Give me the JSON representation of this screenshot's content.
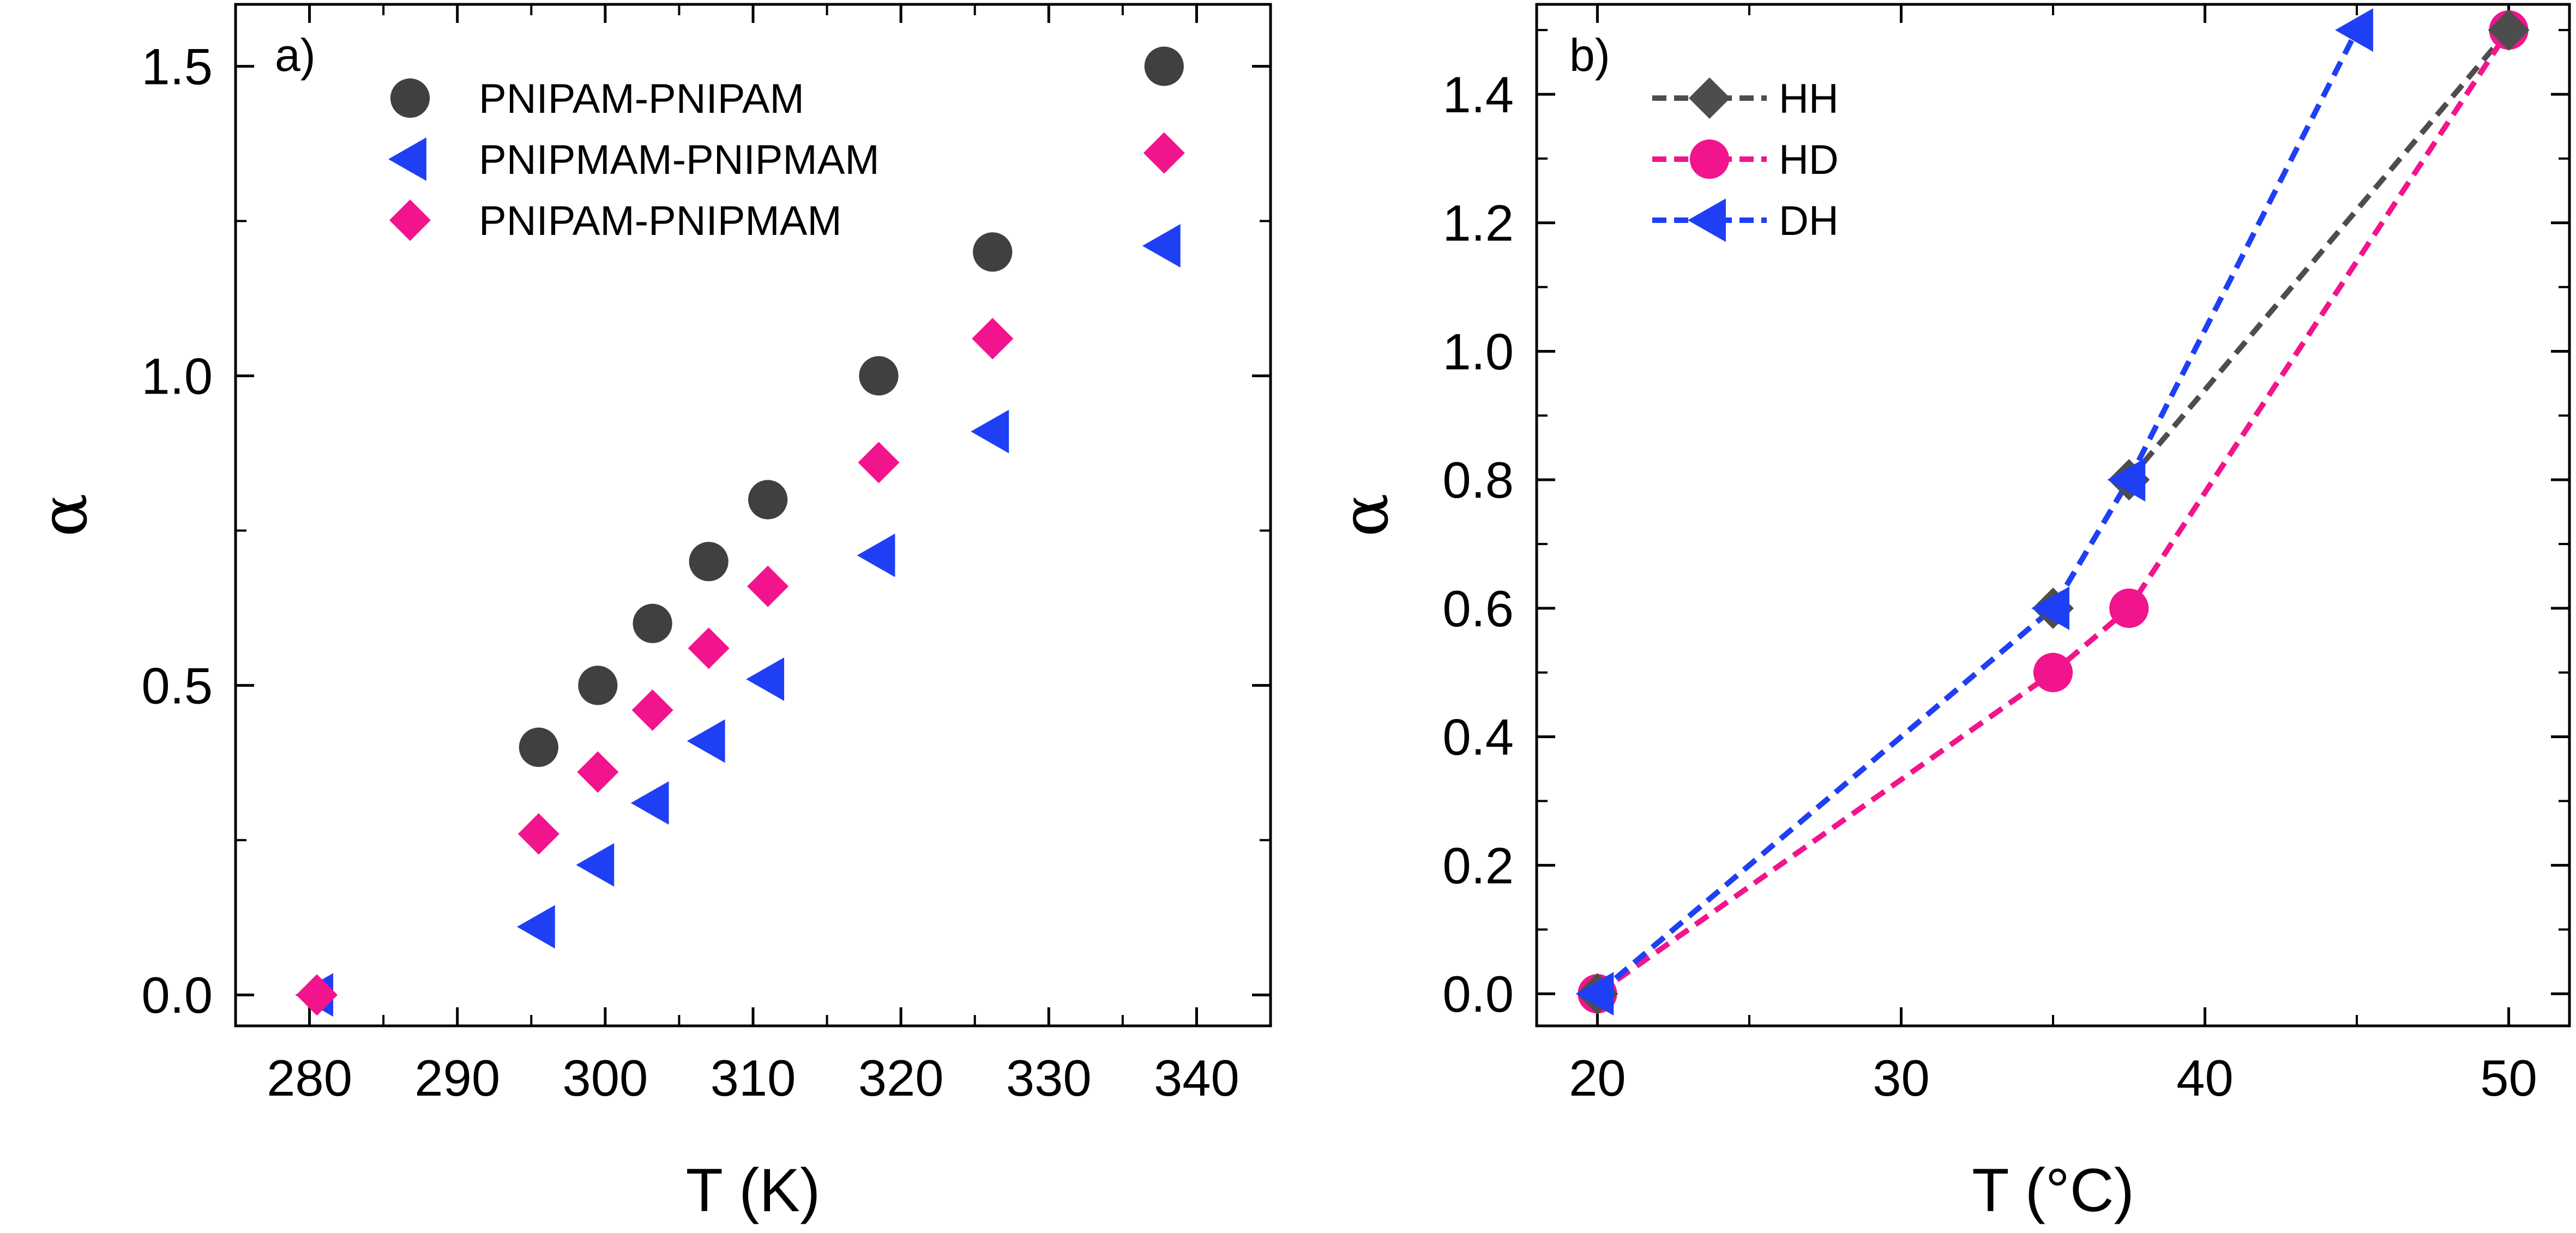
{
  "chart_data": [
    {
      "type": "scatter",
      "panel_label": "a)",
      "xlabel": "T (K)",
      "ylabel": "α",
      "xlim": [
        275,
        345
      ],
      "ylim": [
        -0.05,
        1.6
      ],
      "xticks": [
        280,
        290,
        300,
        310,
        320,
        330,
        340
      ],
      "yticks": [
        0.0,
        0.5,
        1.0,
        1.5
      ],
      "xtick_labels": [
        "280",
        "290",
        "300",
        "310",
        "320",
        "330",
        "340"
      ],
      "ytick_labels": [
        "0.0",
        "0.5",
        "1.0",
        "1.5"
      ],
      "legend_position": "top-left",
      "series": [
        {
          "name": "PNIPAM-PNIPAM",
          "marker": "circle",
          "color": "#404040",
          "x": [
            295.5,
            299.5,
            303.2,
            307,
            311,
            318.5,
            326.2,
            337.8
          ],
          "y": [
            0.4,
            0.5,
            0.6,
            0.7,
            0.8,
            1.0,
            1.2,
            1.5
          ]
        },
        {
          "name": "PNIPMAM-PNIPMAM",
          "marker": "triangle-left",
          "color": "#1f3ff5",
          "x": [
            280.5,
            295.5,
            299.5,
            303.2,
            307,
            311,
            318.5,
            326.2,
            337.8
          ],
          "y": [
            0.0,
            0.11,
            0.21,
            0.31,
            0.41,
            0.51,
            0.71,
            0.91,
            1.21
          ]
        },
        {
          "name": "PNIPAM-PNIPMAM",
          "marker": "diamond",
          "color": "#f2148c",
          "x": [
            280.5,
            295.5,
            299.5,
            303.2,
            307,
            311,
            318.5,
            326.2,
            337.8
          ],
          "y": [
            0.0,
            0.26,
            0.36,
            0.46,
            0.56,
            0.66,
            0.86,
            1.06,
            1.36
          ]
        }
      ]
    },
    {
      "type": "line",
      "panel_label": "b)",
      "xlabel": "T (°C)",
      "ylabel": "α",
      "xlim": [
        18,
        52
      ],
      "ylim": [
        -0.05,
        1.54
      ],
      "xticks": [
        20,
        30,
        40,
        50
      ],
      "yticks": [
        0.0,
        0.2,
        0.4,
        0.6,
        0.8,
        1.0,
        1.2,
        1.4
      ],
      "xtick_labels": [
        "20",
        "30",
        "40",
        "50"
      ],
      "ytick_labels": [
        "0.0",
        "0.2",
        "0.4",
        "0.6",
        "0.8",
        "1.0",
        "1.2",
        "1.4"
      ],
      "legend_position": "top-left",
      "series": [
        {
          "name": "HH",
          "marker": "diamond",
          "color": "#4d4d4d",
          "x": [
            20,
            35,
            37.5,
            50
          ],
          "y": [
            0.0,
            0.6,
            0.8,
            1.5
          ]
        },
        {
          "name": "HD",
          "marker": "circle",
          "color": "#f2148c",
          "x": [
            20,
            35,
            37.5,
            50
          ],
          "y": [
            0.0,
            0.5,
            0.6,
            1.5
          ]
        },
        {
          "name": "DH",
          "marker": "triangle-left",
          "color": "#1f3ff5",
          "x": [
            20,
            35,
            37.5,
            45
          ],
          "y": [
            0.0,
            0.6,
            0.8,
            1.5
          ]
        }
      ]
    }
  ]
}
